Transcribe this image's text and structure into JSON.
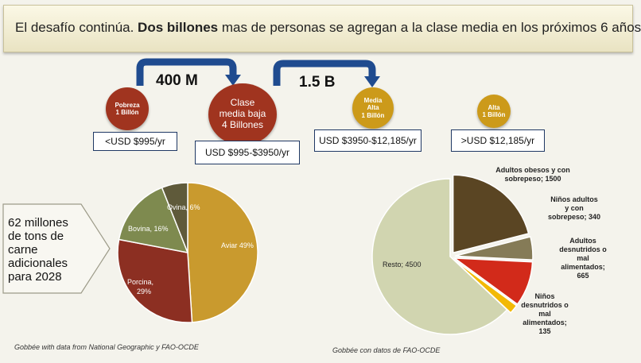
{
  "header": {
    "title_part1": "El desafío continúa. ",
    "title_bold": "Dos billones",
    "title_part2": " mas de personas se agregan a la clase media en los próximos 6 años"
  },
  "flow": {
    "arrow1_label": "400 M",
    "arrow2_label": "1.5 B"
  },
  "classes": [
    {
      "line1": "Pobreza",
      "line2": "1 Billón",
      "income": "<USD $995/yr",
      "color": "#a0341f"
    },
    {
      "line1": "Clase",
      "line2": "media baja",
      "line3": "4 Billones",
      "income": "USD $995-$3950/yr",
      "color": "#a0341f"
    },
    {
      "line1": "Media",
      "line2": "Alta",
      "line3": "1 Billón",
      "income": "USD $3950-$12,185/yr",
      "color": "#cc9a1a"
    },
    {
      "line1": "Alta",
      "line2": "1 Billón",
      "income": ">USD $12,185/yr",
      "color": "#cc9a1a"
    }
  ],
  "callout": {
    "text_line1": "62 millones",
    "text_line2": "de tons de",
    "text_line3": "carne",
    "text_line4": "adicionales",
    "text_line5": "para 2028"
  },
  "chart_data": [
    {
      "type": "pie",
      "slices": [
        {
          "label": "Aviar",
          "value": 49,
          "color": "#c99a2e"
        },
        {
          "label": "Porcina",
          "value": 29,
          "color": "#8c2f22"
        },
        {
          "label": "Bovina",
          "value": 16,
          "color": "#7e8a4f"
        },
        {
          "label": "Ovina",
          "value": 6,
          "color": "#5f5a3a"
        }
      ],
      "slice_texts": [
        "Aviar 49%",
        "Porcina,",
        "29%",
        "Bovina, 16%",
        "Ovina, 6%"
      ]
    },
    {
      "type": "pie",
      "slices": [
        {
          "label": "Adultos obesos y con sobrepeso",
          "value": 1500,
          "color": "#5a4523"
        },
        {
          "label": "Niños adultos y con sobrepeso",
          "value": 340,
          "color": "#857b57"
        },
        {
          "label": "Adultos desnutridos o mal alimentados",
          "value": 665,
          "color": "#d22a1a"
        },
        {
          "label": "Niños desnutridos o mal alimentados",
          "value": 135,
          "color": "#f2b905"
        },
        {
          "label": "Resto",
          "value": 4500,
          "color": "#d1d5b0"
        }
      ]
    }
  ],
  "labels2": {
    "obesos": [
      "Adultos obesos y con",
      "sobrepeso; 1500"
    ],
    "ninos_sob": [
      "Niños adultos",
      "y con",
      "sobrepeso; 340"
    ],
    "adultos_des": [
      "Adultos",
      "desnutridos o",
      "mal",
      "alimentados;",
      "665"
    ],
    "ninos_des": [
      "Niños",
      "desnutridos o",
      "mal",
      "alimentados;",
      "135"
    ],
    "resto": "Resto; 4500"
  },
  "sources": {
    "left": "Gobbée with data from National Geographic y FAO-OCDE",
    "right": "Gobbée con datos de FAO-OCDE"
  }
}
